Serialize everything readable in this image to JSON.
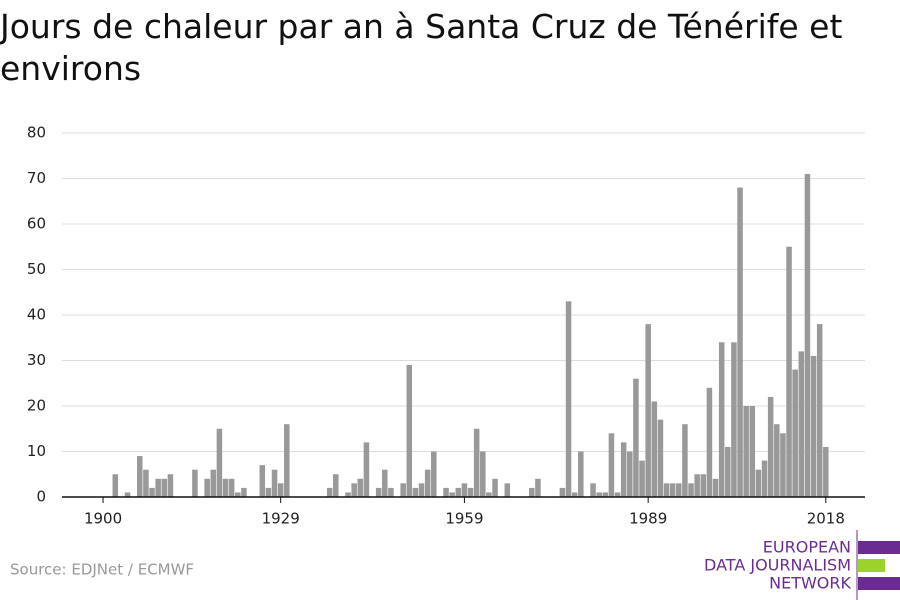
{
  "chart_data": {
    "type": "bar",
    "title": "Jours de chaleur par an à Santa Cruz de Ténérife et environs",
    "source": "Source: EDJNet / ECMWF",
    "logo": [
      "EUROPEAN",
      "DATA JOURNALISM",
      "NETWORK"
    ],
    "x": [
      1900,
      1901,
      1902,
      1903,
      1904,
      1905,
      1906,
      1907,
      1908,
      1909,
      1910,
      1911,
      1912,
      1913,
      1914,
      1915,
      1916,
      1917,
      1918,
      1919,
      1920,
      1921,
      1922,
      1923,
      1924,
      1925,
      1926,
      1927,
      1928,
      1929,
      1930,
      1931,
      1932,
      1933,
      1934,
      1935,
      1936,
      1937,
      1938,
      1939,
      1940,
      1941,
      1942,
      1943,
      1944,
      1945,
      1946,
      1947,
      1948,
      1949,
      1950,
      1951,
      1952,
      1953,
      1954,
      1955,
      1956,
      1957,
      1958,
      1959,
      1960,
      1961,
      1962,
      1963,
      1964,
      1965,
      1966,
      1967,
      1968,
      1969,
      1970,
      1971,
      1972,
      1973,
      1974,
      1975,
      1976,
      1977,
      1978,
      1979,
      1980,
      1981,
      1982,
      1983,
      1984,
      1985,
      1986,
      1987,
      1988,
      1989,
      1990,
      1991,
      1992,
      1993,
      1994,
      1995,
      1996,
      1997,
      1998,
      1999,
      2000,
      2001,
      2002,
      2003,
      2004,
      2005,
      2006,
      2007,
      2008,
      2009,
      2010,
      2011,
      2012,
      2013,
      2014,
      2015,
      2016,
      2017,
      2018
    ],
    "values": [
      0,
      0,
      5,
      0,
      1,
      0,
      9,
      6,
      2,
      4,
      4,
      5,
      0,
      0,
      0,
      6,
      0,
      4,
      6,
      15,
      4,
      4,
      1,
      2,
      0,
      0,
      7,
      2,
      6,
      3,
      16,
      0,
      0,
      0,
      0,
      0,
      0,
      2,
      5,
      0,
      1,
      3,
      4,
      12,
      0,
      2,
      6,
      2,
      0,
      3,
      29,
      2,
      3,
      6,
      10,
      0,
      2,
      1,
      2,
      3,
      2,
      15,
      10,
      1,
      4,
      0,
      3,
      0,
      0,
      0,
      2,
      4,
      0,
      0,
      0,
      2,
      43,
      1,
      10,
      0,
      3,
      1,
      1,
      14,
      1,
      12,
      10,
      26,
      8,
      38,
      21,
      17,
      3,
      3,
      3,
      16,
      3,
      5,
      5,
      24,
      4,
      34,
      11,
      34,
      68,
      20,
      20,
      6,
      8,
      22,
      16,
      14,
      55,
      28,
      32,
      71,
      31,
      38,
      11
    ],
    "color": "#999999",
    "xlim": [
      1893.3,
      2024.4
    ],
    "xticks": [
      1900,
      1929,
      1959,
      1989,
      2018
    ],
    "ylim": [
      0,
      80
    ],
    "yticks": [
      0,
      10,
      20,
      30,
      40,
      50,
      60,
      70,
      80
    ],
    "grid": true
  }
}
